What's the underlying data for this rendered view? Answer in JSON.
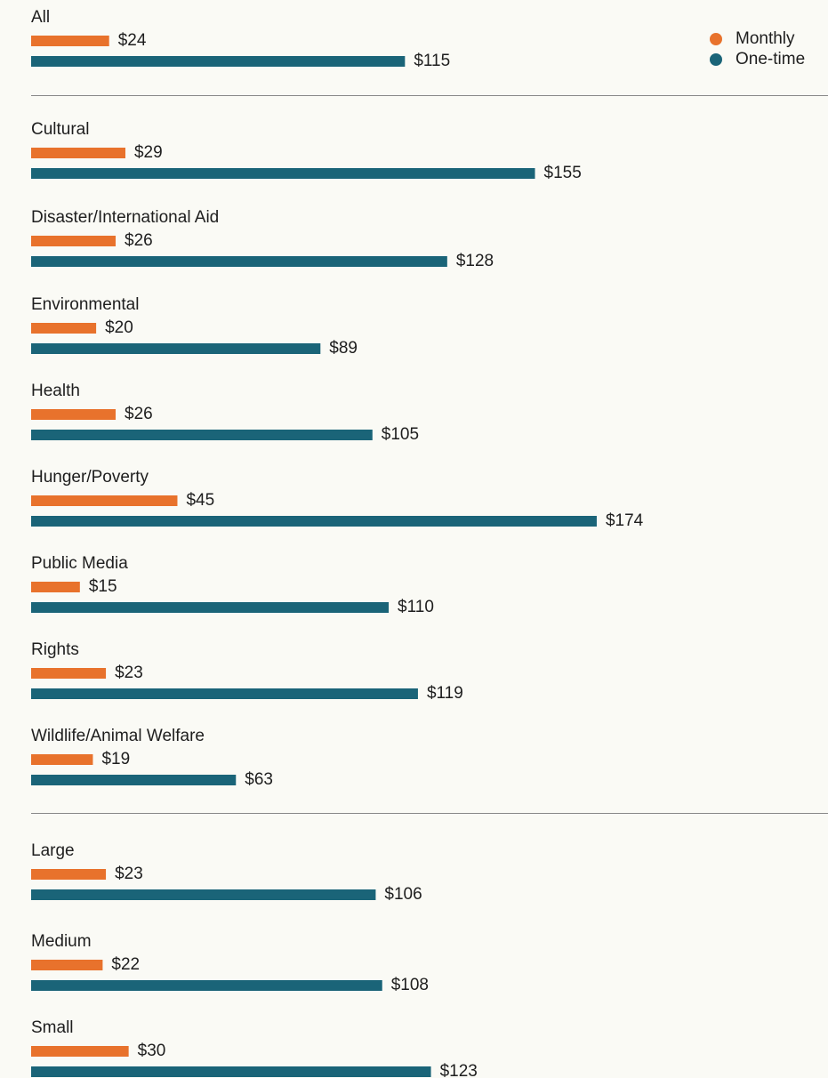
{
  "chart_data": {
    "type": "bar",
    "orientation": "horizontal",
    "categories": [
      "All",
      "Cultural",
      "Disaster/International Aid",
      "Environmental",
      "Health",
      "Hunger/Poverty",
      "Public Media",
      "Rights",
      "Wildlife/Animal Welfare",
      "Large",
      "Medium",
      "Small"
    ],
    "series": [
      {
        "name": "Monthly",
        "color": "#e8722c",
        "values": [
          24,
          29,
          26,
          20,
          26,
          45,
          15,
          23,
          19,
          23,
          22,
          30
        ],
        "value_labels": [
          "$24",
          "$29",
          "$26",
          "$20",
          "$26",
          "$45",
          "$15",
          "$23",
          "$19",
          "$23",
          "$22",
          "$30"
        ]
      },
      {
        "name": "One-time",
        "color": "#1a6478",
        "values": [
          115,
          155,
          128,
          89,
          105,
          174,
          110,
          119,
          63,
          106,
          108,
          123
        ],
        "value_labels": [
          "$115",
          "$155",
          "$128",
          "$89",
          "$105",
          "$174",
          "$110",
          "$119",
          "$63",
          "$106",
          "$108",
          "$123"
        ]
      }
    ],
    "legend": "top-right"
  }
}
